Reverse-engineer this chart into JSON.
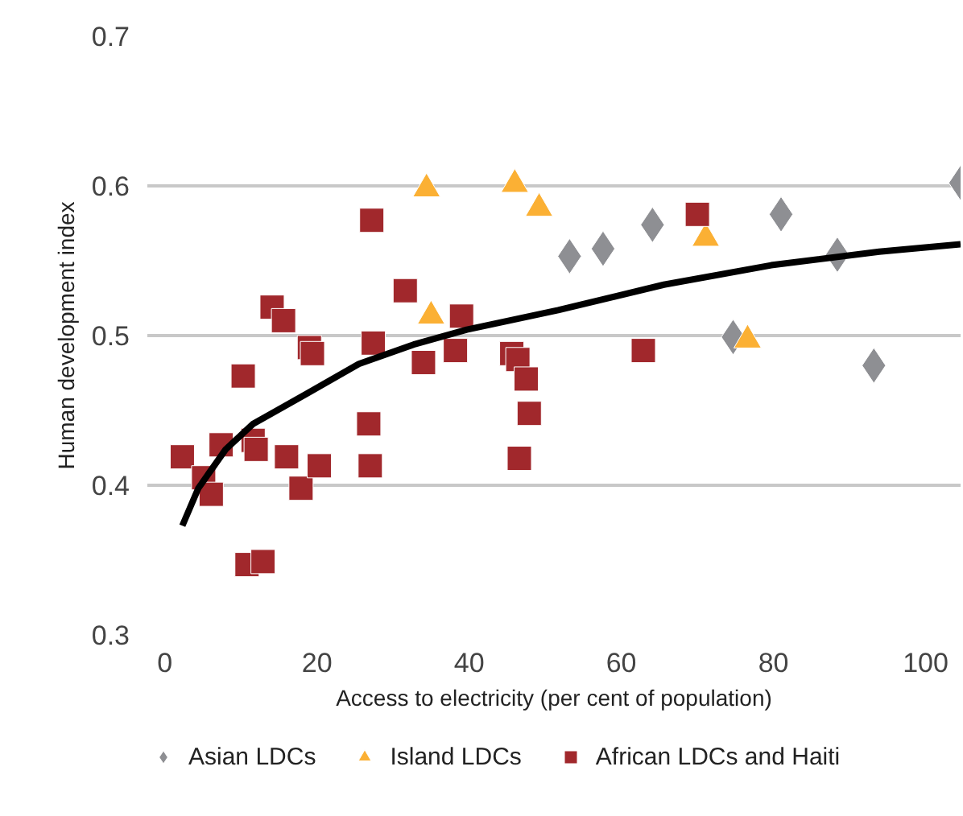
{
  "chart_data": {
    "type": "scatter",
    "xlabel": "Access to electricity (per cent of population)",
    "ylabel": "Human development index",
    "xlim": [
      -2.3,
      104.6
    ],
    "ylim": [
      0.3,
      0.7
    ],
    "xticks": [
      0,
      20,
      40,
      60,
      80,
      100
    ],
    "yticks": [
      0.3,
      0.4,
      0.5,
      0.6,
      0.7
    ],
    "grid": "y",
    "legend": "bottom",
    "series": [
      {
        "name": "Asian LDCs",
        "color": "#8e8f93",
        "marker": "diamond",
        "x": [
          53.2,
          57.6,
          64.1,
          81.0,
          88.4,
          74.7,
          93.2,
          104.6
        ],
        "values": [
          0.553,
          0.558,
          0.574,
          0.581,
          0.554,
          0.499,
          0.48,
          0.602
        ]
      },
      {
        "name": "Island LDCs",
        "color": "#fbb034",
        "marker": "triangle",
        "x": [
          34.4,
          35.0,
          46.0,
          49.2,
          71.1,
          76.6
        ],
        "values": [
          0.598,
          0.513,
          0.601,
          0.585,
          0.565,
          0.497
        ]
      },
      {
        "name": "African LDCs and Haiti",
        "color": "#a1282c",
        "marker": "square",
        "x": [
          2.3,
          5.1,
          6.1,
          7.4,
          10.3,
          10.8,
          12.9,
          11.6,
          12.0,
          14.1,
          15.6,
          16.0,
          17.9,
          19.0,
          19.4,
          20.3,
          27.0,
          26.8,
          27.2,
          27.4,
          31.6,
          34.0,
          38.2,
          39.0,
          45.6,
          46.4,
          47.5,
          47.9,
          46.6,
          62.9,
          70.0
        ],
        "values": [
          0.419,
          0.405,
          0.394,
          0.427,
          0.473,
          0.347,
          0.349,
          0.43,
          0.424,
          0.519,
          0.51,
          0.419,
          0.398,
          0.492,
          0.488,
          0.413,
          0.413,
          0.441,
          0.577,
          0.495,
          0.53,
          0.482,
          0.49,
          0.513,
          0.488,
          0.484,
          0.471,
          0.448,
          0.418,
          0.49,
          0.581
        ]
      },
      {
        "type": "line",
        "color": "#000000",
        "x": [
          2.3,
          4.4,
          8.0,
          11.6,
          18.6,
          25.5,
          32.7,
          39.7,
          51.7,
          65.6,
          79.7,
          93.9,
          104.6
        ],
        "values": [
          0.373,
          0.398,
          0.424,
          0.441,
          0.461,
          0.481,
          0.494,
          0.504,
          0.517,
          0.534,
          0.547,
          0.556,
          0.561
        ]
      }
    ]
  }
}
